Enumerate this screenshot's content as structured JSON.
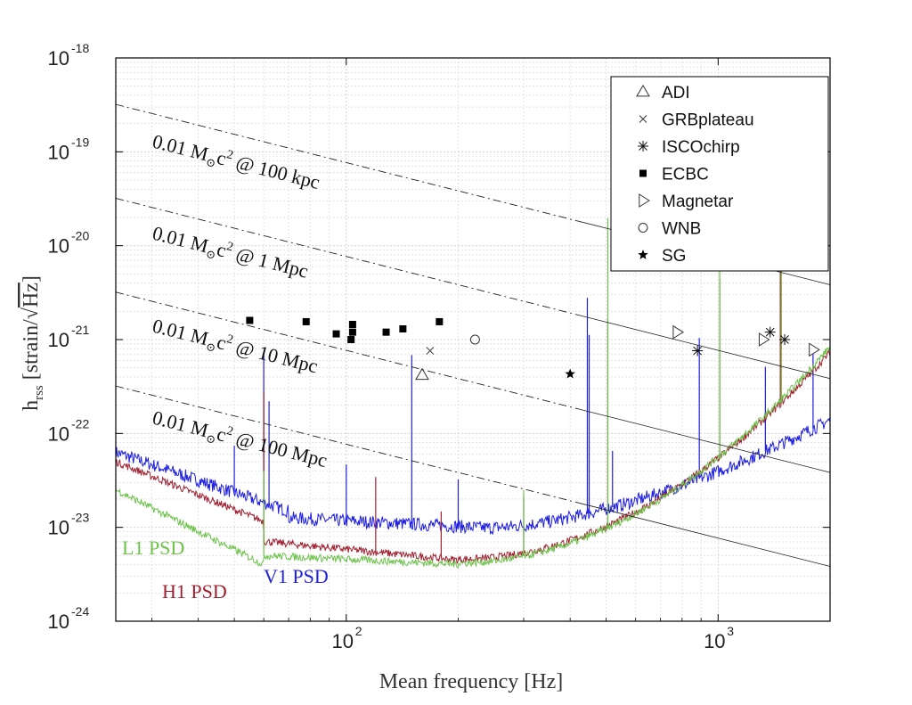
{
  "chart_data": {
    "type": "scatter",
    "xscale": "log",
    "yscale": "log",
    "xlim": [
      24,
      2000
    ],
    "ylim": [
      1e-24,
      1e-18
    ],
    "xlabel": "Mean frequency [Hz]",
    "ylabel": {
      "prefix": "h",
      "subscript": "rss",
      "unit": "[strain/",
      "sqrt": "Hz",
      "close": "]"
    },
    "x_ticks": [
      {
        "value": 100,
        "base": "10",
        "exp": "2"
      },
      {
        "value": 1000,
        "base": "10",
        "exp": "3"
      }
    ],
    "y_ticks": [
      {
        "value": 1e-18,
        "base": "10",
        "exp": "-18"
      },
      {
        "value": 1e-19,
        "base": "10",
        "exp": "-19"
      },
      {
        "value": 1e-20,
        "base": "10",
        "exp": "-20"
      },
      {
        "value": 1e-21,
        "base": "10",
        "exp": "-21"
      },
      {
        "value": 1e-22,
        "base": "10",
        "exp": "-22"
      },
      {
        "value": 1e-23,
        "base": "10",
        "exp": "-23"
      },
      {
        "value": 1e-24,
        "base": "10",
        "exp": "-24"
      }
    ],
    "grid": true,
    "legend_position": "top-right",
    "reference_lines": [
      {
        "label_main": "0.01 M",
        "label_sub": "⊙",
        "label_c": "c",
        "label_pow": "2",
        "label_dist": " @ 100 kpc",
        "y_at_24": 3.2e-19,
        "slope": -1
      },
      {
        "label_main": "0.01 M",
        "label_sub": "⊙",
        "label_c": "c",
        "label_pow": "2",
        "label_dist": " @ 1 Mpc",
        "y_at_24": 3.2e-20,
        "slope": -1
      },
      {
        "label_main": "0.01 M",
        "label_sub": "⊙",
        "label_c": "c",
        "label_pow": "2",
        "label_dist": " @ 10 Mpc",
        "y_at_24": 3.2e-21,
        "slope": -1
      },
      {
        "label_main": "0.01 M",
        "label_sub": "⊙",
        "label_c": "c",
        "label_pow": "2",
        "label_dist": " @ 100 Mpc",
        "y_at_24": 3.2e-22,
        "slope": -1
      }
    ],
    "series": [
      {
        "name": "ADI",
        "marker": "triangle-up",
        "points": [
          [
            160,
            4.2e-22
          ]
        ]
      },
      {
        "name": "GRBplateau",
        "marker": "x",
        "points": [
          [
            168,
            7.6e-22
          ]
        ]
      },
      {
        "name": "ISCOchirp",
        "marker": "asterisk",
        "points": [
          [
            880,
            7.6e-22
          ],
          [
            1380,
            1.2e-21
          ],
          [
            1510,
            1e-21
          ]
        ]
      },
      {
        "name": "ECBC",
        "marker": "square",
        "points": [
          [
            55,
            1.6e-21
          ],
          [
            78,
            1.55e-21
          ],
          [
            94,
            1.15e-21
          ],
          [
            103,
            1e-21
          ],
          [
            104,
            1.2e-21
          ],
          [
            104,
            1.45e-21
          ],
          [
            128,
            1.2e-21
          ],
          [
            142,
            1.3e-21
          ],
          [
            178,
            1.55e-21
          ]
        ]
      },
      {
        "name": "Magnetar",
        "marker": "triangle-right",
        "points": [
          [
            775,
            1.2e-21
          ],
          [
            1320,
            1e-21
          ],
          [
            1800,
            7.8e-22
          ]
        ]
      },
      {
        "name": "WNB",
        "marker": "circle",
        "points": [
          [
            222,
            1e-21
          ]
        ]
      },
      {
        "name": "SG",
        "marker": "star",
        "points": [
          [
            400,
            4.3e-22
          ]
        ]
      }
    ],
    "psd_curves": [
      {
        "name": "L1 PSD",
        "color": "#6cc24a",
        "label": "L1 PSD"
      },
      {
        "name": "H1 PSD",
        "color": "#a02030",
        "label": "H1 PSD"
      },
      {
        "name": "V1 PSD",
        "color": "#1f1fe0",
        "label": "V1 PSD"
      }
    ]
  }
}
